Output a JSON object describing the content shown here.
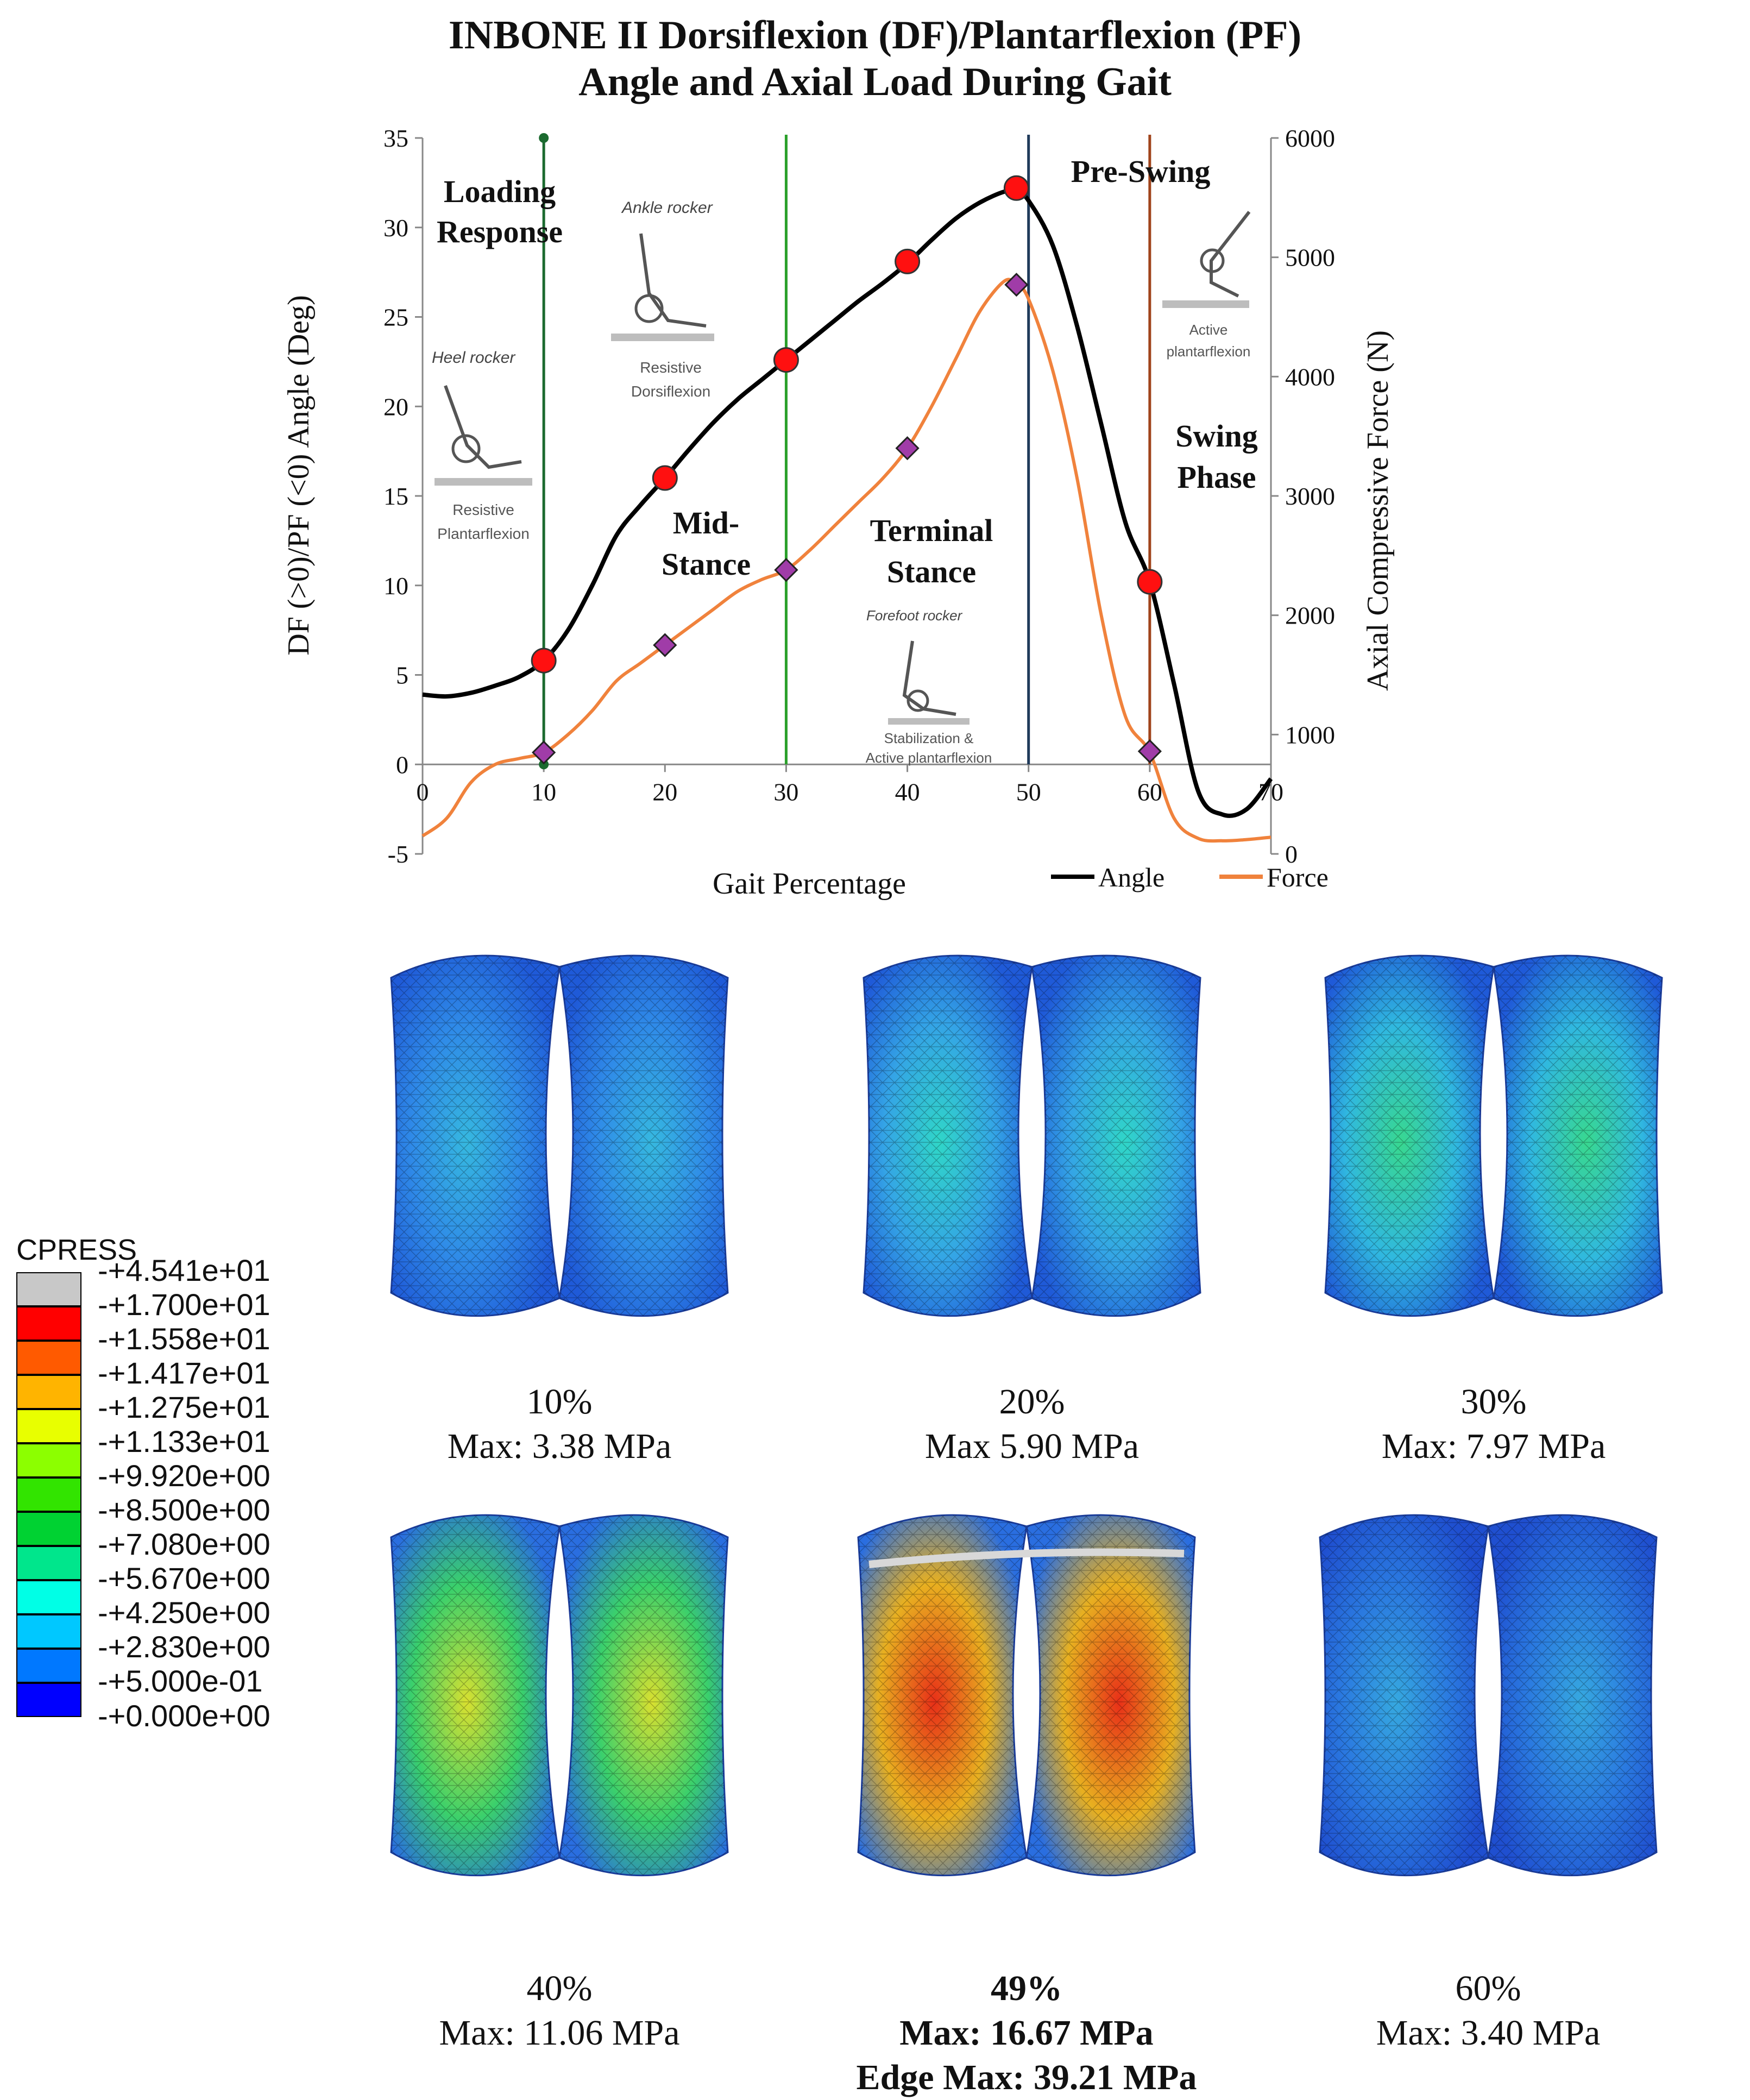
{
  "title": {
    "line1": "INBONE II Dorsiflexion (DF)/Plantarflexion (PF)",
    "line2": "Angle and Axial Load During Gait"
  },
  "chart_data": {
    "type": "line",
    "x_label": "Gait Percentage",
    "y_label_left": "DF (>0)/PF (<0) Angle (Deg)",
    "y_label_right": "Axial Compressive  Force (N)",
    "x_ticks": [
      0,
      10,
      20,
      30,
      40,
      50,
      60,
      70
    ],
    "y_left_ticks": [
      -5,
      0,
      5,
      10,
      15,
      20,
      25,
      30,
      35
    ],
    "y_right_ticks": [
      0,
      1000,
      2000,
      3000,
      4000,
      5000,
      6000
    ],
    "x_range": [
      0,
      70
    ],
    "y_left_range": [
      -5,
      35
    ],
    "y_right_range": [
      0,
      6000
    ],
    "grid": false,
    "legend_position": "bottom-right",
    "series": [
      {
        "name": "Angle",
        "color": "#000000",
        "axis": "left",
        "x": [
          0,
          2,
          4,
          6,
          8,
          10,
          12,
          14,
          16,
          18,
          20,
          22,
          24,
          26,
          28,
          30,
          32,
          34,
          36,
          38,
          40,
          42,
          44,
          46,
          48,
          49,
          50,
          52,
          54,
          56,
          58,
          60,
          62,
          64,
          66,
          68,
          70
        ],
        "y": [
          3.9,
          3.8,
          4.0,
          4.4,
          4.9,
          5.8,
          7.5,
          10,
          12.8,
          14.5,
          16,
          17.6,
          19.1,
          20.4,
          21.5,
          22.6,
          23.7,
          24.8,
          25.9,
          26.9,
          28.0,
          29.3,
          30.5,
          31.4,
          32.0,
          32.0,
          31.5,
          29.0,
          24.5,
          19.0,
          13.5,
          10.2,
          4.5,
          -1.5,
          -2.8,
          -2.5,
          -0.8
        ]
      },
      {
        "name": "Force",
        "color": "#f0823c",
        "axis": "right",
        "x": [
          0,
          2,
          4,
          6,
          8,
          10,
          12,
          14,
          16,
          18,
          20,
          22,
          24,
          26,
          28,
          30,
          32,
          34,
          36,
          38,
          40,
          42,
          44,
          46,
          48,
          49,
          50,
          52,
          54,
          56,
          58,
          60,
          62,
          64,
          66,
          68,
          70
        ],
        "y": [
          150,
          300,
          600,
          750,
          800,
          850,
          1000,
          1200,
          1450,
          1600,
          1750,
          1900,
          2050,
          2200,
          2300,
          2380,
          2550,
          2750,
          2950,
          3150,
          3400,
          3750,
          4150,
          4550,
          4800,
          4770,
          4650,
          4050,
          3150,
          2000,
          1150,
          850,
          300,
          130,
          110,
          120,
          140
        ]
      }
    ],
    "markers": {
      "angle_circles": [
        [
          10,
          5.8
        ],
        [
          20,
          16.0
        ],
        [
          30,
          22.6
        ],
        [
          40,
          28.1
        ],
        [
          49,
          32.2
        ],
        [
          60,
          10.2
        ]
      ],
      "force_diamonds": [
        [
          10,
          850
        ],
        [
          20,
          1750
        ],
        [
          30,
          2380
        ],
        [
          40,
          3400
        ],
        [
          49,
          4770
        ],
        [
          60,
          860
        ]
      ]
    },
    "phase_lines": [
      {
        "x": 10,
        "color": "#1b6a2f"
      },
      {
        "x": 30,
        "color": "#2aa02a"
      },
      {
        "x": 50,
        "color": "#1f3a5a"
      },
      {
        "x": 60,
        "color": "#a0441c"
      }
    ]
  },
  "phases": {
    "loading_response": [
      "Loading",
      "Response"
    ],
    "mid_stance": [
      "Mid-",
      "Stance"
    ],
    "terminal_stance": [
      "Terminal",
      "Stance"
    ],
    "pre_swing": "Pre-Swing",
    "swing_phase": [
      "Swing",
      "Phase"
    ]
  },
  "rockers": {
    "heel": {
      "name": "Heel rocker",
      "caption": [
        "Resistive",
        "Plantarflexion"
      ]
    },
    "ankle": {
      "name": "Ankle rocker",
      "caption": [
        "Resistive",
        "Dorsiflexion"
      ]
    },
    "forefoot": {
      "name": "Forefoot rocker",
      "caption": [
        "Stabilization &",
        "Active plantarflexion"
      ]
    },
    "active": {
      "name": "",
      "caption": [
        "Active",
        "plantarflexion"
      ]
    }
  },
  "cpress_legend": {
    "title": "CPRESS",
    "labels": [
      "+4.541e+01",
      "+1.700e+01",
      "+1.558e+01",
      "+1.417e+01",
      "+1.275e+01",
      "+1.133e+01",
      "+9.920e+00",
      "+8.500e+00",
      "+7.080e+00",
      "+5.670e+00",
      "+4.250e+00",
      "+2.830e+00",
      "+5.000e-01",
      "+0.000e+00"
    ],
    "colors": [
      "#c8c8c8",
      "#ff0000",
      "#ff5a00",
      "#ffb400",
      "#e8ff00",
      "#8cff00",
      "#32e400",
      "#00d232",
      "#00e68c",
      "#00ffe6",
      "#00c8ff",
      "#0078ff",
      "#0000ff"
    ]
  },
  "panels": [
    {
      "pct": "10%",
      "max": "Max: 3.38 MPa",
      "extra": "",
      "bold": false
    },
    {
      "pct": "20%",
      "max": "Max 5.90 MPa",
      "extra": "",
      "bold": false
    },
    {
      "pct": "30%",
      "max": "Max: 7.97 MPa",
      "extra": "",
      "bold": false
    },
    {
      "pct": "40%",
      "max": "Max: 11.06 MPa",
      "extra": "",
      "bold": false
    },
    {
      "pct": "49%",
      "max": "Max: 16.67 MPa",
      "extra": "Edge Max: 39.21 MPa",
      "bold": true
    },
    {
      "pct": "60%",
      "max": "Max: 3.40 MPa",
      "extra": "",
      "bold": false
    }
  ]
}
